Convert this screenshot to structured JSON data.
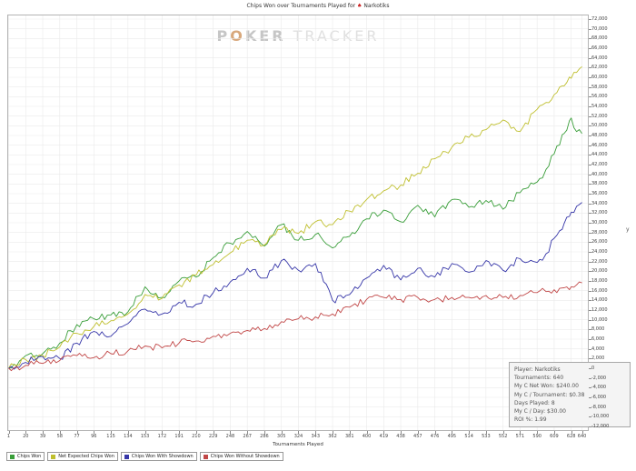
{
  "header": {
    "title_prefix": "Chips Won over Tournaments Played for",
    "player_name": "Narkotiks",
    "player_icon_glyph": "♠"
  },
  "watermark": {
    "p": "P",
    "o": "O",
    "ker": "KER",
    "tracker": "TRACKER"
  },
  "stats_box": {
    "lines": [
      "Player: Narkotiks",
      "Tournaments: 640",
      "My C Net Won: $240.00",
      "My C / Tournament: $0.38",
      "Days Played: 8",
      "My C / Day: $30.00",
      "ROI %: 1.99"
    ]
  },
  "chart_data": {
    "type": "line",
    "title": "Chips Won over Tournaments Played for Narkotiks",
    "xlabel": "Tournaments Played",
    "ylabel": "y",
    "xlim": [
      1,
      644
    ],
    "ylim": [
      -12000,
      72000
    ],
    "ytick_step": 2000,
    "grid": true,
    "legend_position": "bottom-left",
    "x_ticks": [
      1,
      20,
      39,
      58,
      77,
      96,
      115,
      134,
      153,
      172,
      191,
      210,
      229,
      248,
      267,
      286,
      305,
      324,
      343,
      362,
      381,
      400,
      419,
      438,
      457,
      476,
      495,
      514,
      533,
      552,
      571,
      590,
      609,
      628,
      640
    ],
    "x": [
      1,
      20,
      39,
      58,
      77,
      96,
      115,
      134,
      153,
      172,
      191,
      210,
      229,
      248,
      267,
      286,
      305,
      324,
      343,
      362,
      381,
      400,
      419,
      438,
      457,
      476,
      495,
      514,
      533,
      552,
      571,
      590,
      600,
      609,
      620,
      628,
      634,
      640
    ],
    "series": [
      {
        "name": "Chips Won",
        "color": "#3a9e3a",
        "values": [
          0,
          2600,
          3000,
          5200,
          9000,
          10200,
          11000,
          11600,
          16800,
          14600,
          18000,
          18800,
          22800,
          25800,
          28200,
          25200,
          29600,
          26400,
          27600,
          24800,
          27200,
          30800,
          32600,
          30200,
          33600,
          31200,
          34800,
          33200,
          34600,
          32800,
          36200,
          38400,
          41000,
          44200,
          48400,
          51600,
          48800,
          48400
        ]
      },
      {
        "name": "Net Expected Chips Won",
        "color": "#bfbf2e",
        "values": [
          0,
          1800,
          2600,
          4400,
          7200,
          8600,
          9800,
          11200,
          15200,
          14400,
          17200,
          19200,
          21400,
          23800,
          26400,
          25400,
          28600,
          27800,
          30200,
          29600,
          32400,
          34800,
          36600,
          37800,
          40200,
          43200,
          45600,
          47600,
          49200,
          51200,
          48800,
          53400,
          54800,
          56400,
          58200,
          59800,
          61000,
          62200
        ]
      },
      {
        "name": "Chips Won With Showdown",
        "color": "#3636a8",
        "values": [
          0,
          1200,
          2400,
          2000,
          5200,
          7600,
          6600,
          9200,
          12200,
          11200,
          13600,
          13200,
          15600,
          17800,
          20600,
          18600,
          22200,
          20200,
          21600,
          14000,
          15200,
          18600,
          21200,
          18200,
          20600,
          18800,
          21600,
          19800,
          22200,
          20200,
          22600,
          21800,
          23600,
          26800,
          29800,
          32200,
          33400,
          34200
        ]
      },
      {
        "name": "Chips Won Without Showdown",
        "color": "#c14747",
        "values": [
          0,
          600,
          1000,
          1600,
          2600,
          2200,
          3000,
          3600,
          4600,
          4200,
          5200,
          5600,
          6600,
          7200,
          7800,
          8200,
          9600,
          10200,
          10600,
          11200,
          12600,
          14200,
          14600,
          14200,
          14600,
          14200,
          14600,
          14600,
          15000,
          14600,
          15000,
          15600,
          15800,
          16200,
          16600,
          16800,
          17200,
          17600
        ]
      }
    ]
  }
}
